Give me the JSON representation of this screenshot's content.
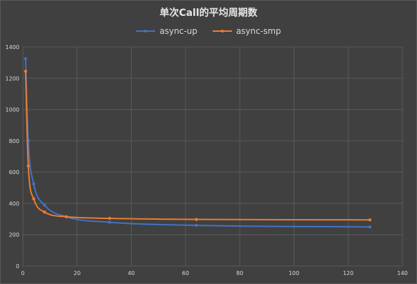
{
  "chart_data": {
    "type": "line",
    "title": "单次Call的平均周期数",
    "xlabel": "",
    "ylabel": "",
    "xlim": [
      0,
      140
    ],
    "ylim": [
      0,
      1400
    ],
    "x_ticks": [
      "0",
      "20",
      "40",
      "60",
      "80",
      "100",
      "120",
      "140"
    ],
    "y_ticks": [
      "0",
      "200",
      "400",
      "600",
      "800",
      "1000",
      "1200",
      "1400"
    ],
    "grid": true,
    "smooth": true,
    "legend_position": "top",
    "series": [
      {
        "name": "async-up",
        "color": "#4472c4",
        "x": [
          1,
          2,
          4,
          8,
          16,
          32,
          64,
          128
        ],
        "y": [
          1325,
          800,
          525,
          390,
          315,
          280,
          260,
          250
        ]
      },
      {
        "name": "async-smp",
        "color": "#ed7d31",
        "x": [
          1,
          2,
          4,
          8,
          16,
          32,
          64,
          128
        ],
        "y": [
          1245,
          640,
          430,
          345,
          315,
          305,
          298,
          295
        ]
      }
    ]
  }
}
